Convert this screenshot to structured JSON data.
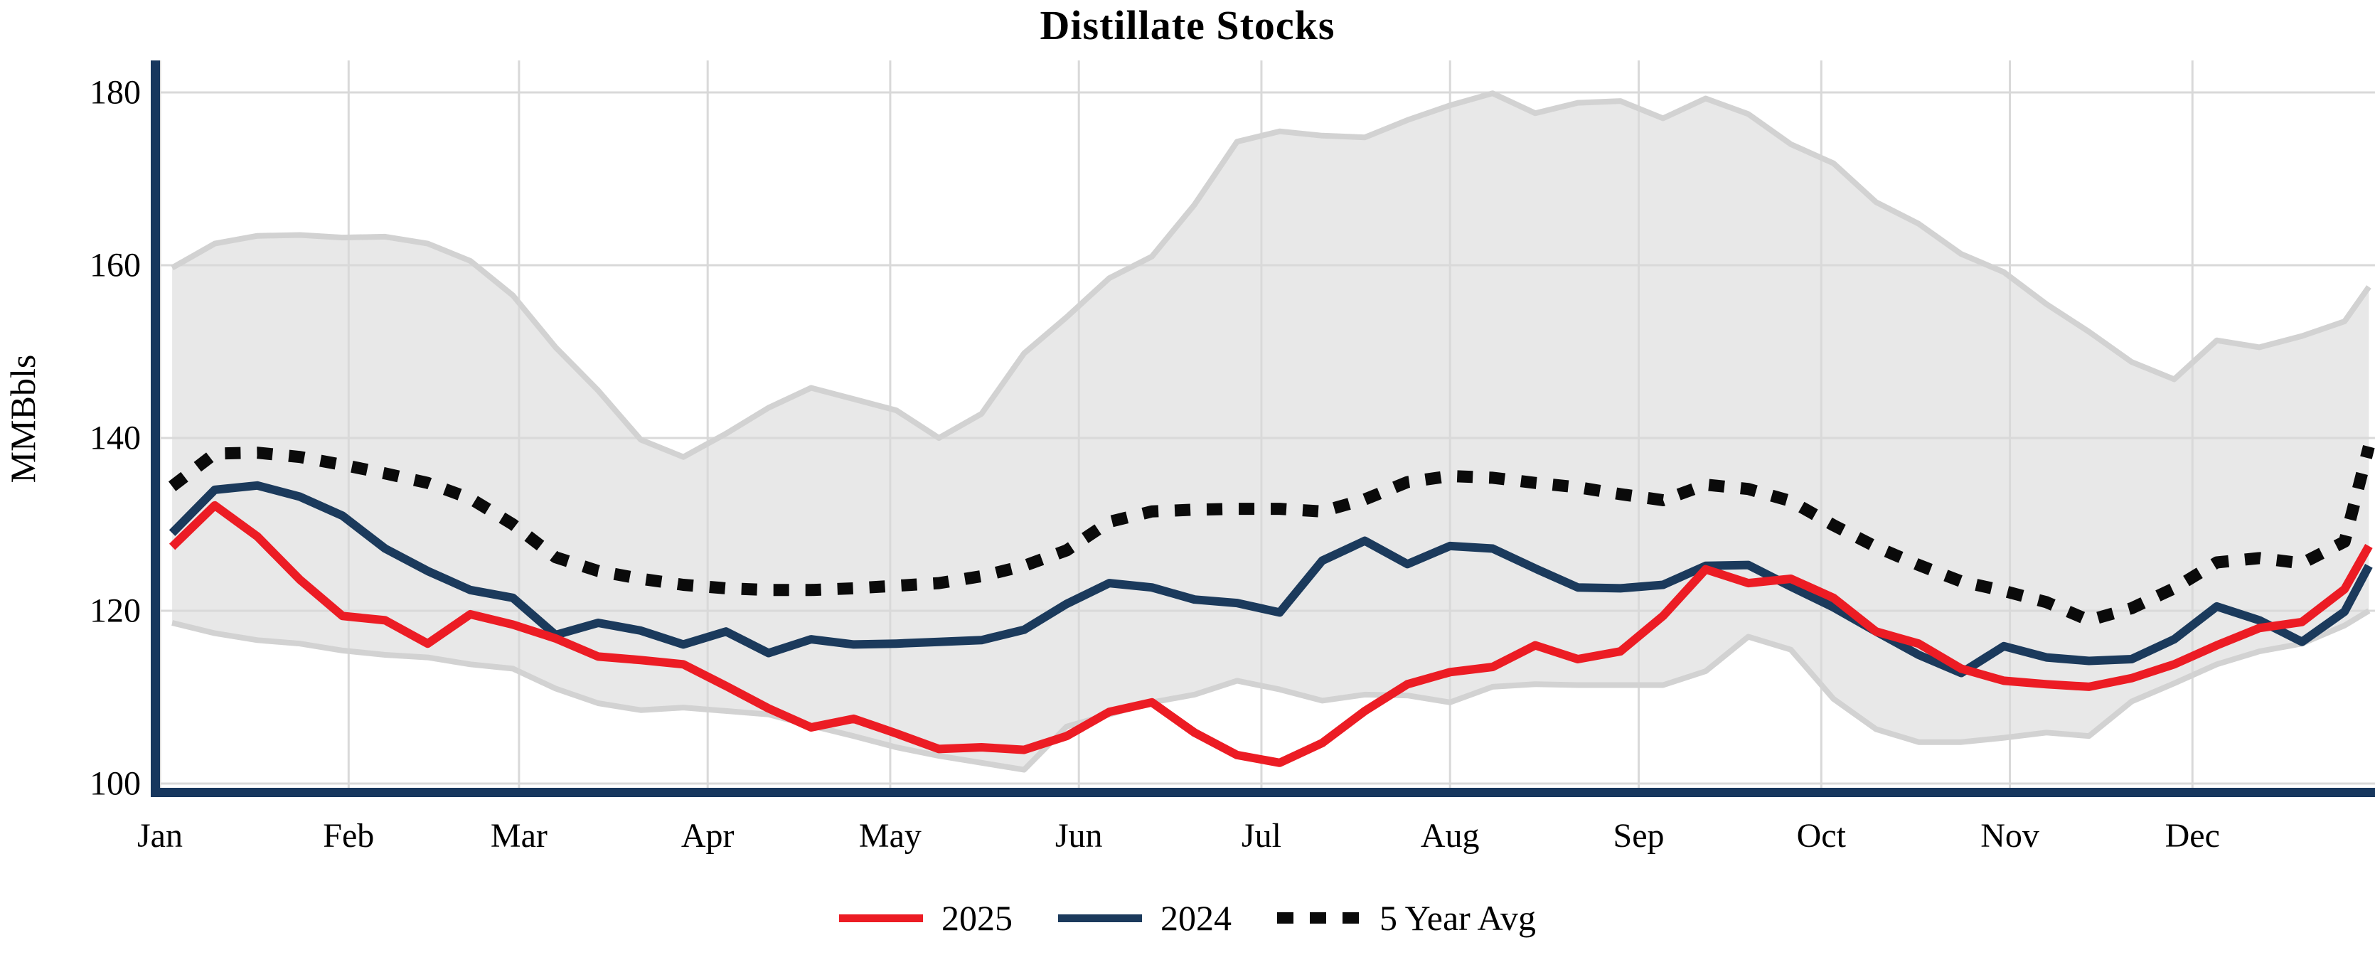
{
  "title": "Distillate Stocks",
  "y_axis": {
    "label": "MMBbls",
    "ticks": [
      100,
      120,
      140,
      160,
      180
    ]
  },
  "x_axis": {
    "months": [
      "Jan",
      "Feb",
      "Mar",
      "Apr",
      "May",
      "Jun",
      "Jul",
      "Aug",
      "Sep",
      "Oct",
      "Nov",
      "Dec"
    ]
  },
  "legend": {
    "items": [
      {
        "label": "2025",
        "swatch": "solid-red"
      },
      {
        "label": "2024",
        "swatch": "solid-navy"
      },
      {
        "label": "5 Year Avg",
        "swatch": "dotted-black"
      }
    ]
  },
  "colors": {
    "red": "#ec1c24",
    "navy": "#1b3a5c",
    "dotted": "#0a0a0a",
    "band_fill": "#e8e8e8",
    "band_edge": "#d2d2d2",
    "grid": "#d9d9d9",
    "axis": "#17375e"
  },
  "chart_data": {
    "type": "line",
    "title": "Distillate Stocks",
    "ylabel": "MMBbls",
    "ylim": [
      99,
      184
    ],
    "x_unit": "weekly points, Jan through Dec",
    "grid": true,
    "legend_position": "bottom-center",
    "week_days_of_year": [
      2,
      9,
      16,
      23,
      30,
      37,
      44,
      51,
      58,
      65,
      72,
      79,
      86,
      93,
      100,
      107,
      114,
      121,
      128,
      135,
      142,
      149,
      156,
      163,
      170,
      177,
      184,
      191,
      198,
      205,
      212,
      219,
      226,
      233,
      240,
      247,
      254,
      261,
      268,
      275,
      282,
      289,
      296,
      303,
      310,
      317,
      324,
      331,
      338,
      345,
      352,
      359,
      363
    ],
    "month_start_days": [
      0,
      31,
      59,
      90,
      120,
      151,
      181,
      212,
      243,
      273,
      304,
      334
    ],
    "series": [
      {
        "name": "2025",
        "style": "solid",
        "color_key": "red",
        "values": [
          127.4,
          132.2,
          128.6,
          123.6,
          119.4,
          118.9,
          116.2,
          119.6,
          118.4,
          116.8,
          114.7,
          114.3,
          113.8,
          111.3,
          108.7,
          106.5,
          107.5,
          105.8,
          104.0,
          104.2,
          103.9,
          105.5,
          108.3,
          109.4,
          105.9,
          103.3,
          102.4,
          104.7,
          108.4,
          111.5,
          112.9,
          113.5,
          116.0,
          114.4,
          115.3,
          119.4,
          124.8,
          123.2,
          123.7,
          121.5,
          117.6,
          116.2,
          113.3,
          111.9,
          111.5,
          111.2,
          112.2,
          113.8,
          116.0,
          118.0,
          118.7,
          122.5,
          127.5
        ]
      },
      {
        "name": "2024",
        "style": "solid",
        "color_key": "navy",
        "values": [
          129.0,
          134.0,
          134.5,
          133.2,
          131.0,
          127.2,
          124.6,
          122.4,
          121.5,
          117.2,
          118.6,
          117.7,
          116.1,
          117.6,
          115.1,
          116.7,
          116.1,
          116.2,
          116.4,
          116.6,
          117.8,
          120.8,
          123.2,
          122.7,
          121.3,
          120.9,
          119.8,
          125.8,
          128.1,
          125.4,
          127.5,
          127.2,
          124.9,
          122.7,
          122.6,
          123.0,
          125.2,
          125.3,
          122.8,
          120.4,
          117.6,
          114.9,
          112.8,
          115.9,
          114.6,
          114.2,
          114.4,
          116.7,
          120.5,
          118.9,
          116.4,
          119.9,
          125.2
        ]
      },
      {
        "name": "5 Year Avg",
        "style": "dotted",
        "color_key": "dotted",
        "values": [
          134.4,
          138.2,
          138.3,
          137.8,
          136.9,
          135.9,
          134.8,
          133.0,
          130.0,
          126.2,
          124.6,
          123.7,
          123.0,
          122.6,
          122.4,
          122.4,
          122.6,
          122.9,
          123.2,
          124.0,
          125.2,
          127.0,
          130.3,
          131.5,
          131.7,
          131.8,
          131.8,
          131.5,
          132.9,
          134.9,
          135.6,
          135.4,
          134.8,
          134.3,
          133.5,
          132.8,
          134.6,
          134.1,
          132.7,
          129.9,
          127.4,
          125.3,
          123.4,
          122.3,
          121.0,
          118.9,
          120.3,
          122.6,
          125.6,
          126.1,
          125.5,
          128.0,
          139.0
        ]
      }
    ],
    "band": {
      "name": "5 Year Range",
      "top": [
        159.7,
        162.5,
        163.4,
        163.5,
        163.2,
        163.3,
        162.5,
        160.5,
        156.5,
        150.5,
        145.5,
        139.8,
        137.8,
        140.5,
        143.5,
        145.8,
        144.5,
        143.2,
        140.0,
        142.8,
        149.8,
        154.0,
        158.5,
        161.0,
        167.0,
        174.3,
        175.5,
        175.0,
        174.8,
        176.8,
        178.5,
        179.9,
        177.6,
        178.8,
        179.0,
        177.0,
        179.3,
        177.5,
        174.0,
        171.8,
        167.3,
        164.8,
        161.3,
        159.2,
        155.5,
        152.3,
        148.8,
        146.8,
        151.3,
        150.5,
        151.8,
        153.5,
        157.5
      ],
      "bottom": [
        118.6,
        117.4,
        116.6,
        116.2,
        115.4,
        114.9,
        114.6,
        113.8,
        113.3,
        111.0,
        109.3,
        108.5,
        108.8,
        108.4,
        108.0,
        106.7,
        105.5,
        104.2,
        103.2,
        102.4,
        101.6,
        106.6,
        108.0,
        109.4,
        110.3,
        111.9,
        110.9,
        109.6,
        110.3,
        110.2,
        109.4,
        111.2,
        111.5,
        111.4,
        111.4,
        111.4,
        113.0,
        117.0,
        115.5,
        109.8,
        106.3,
        104.8,
        104.8,
        105.3,
        105.9,
        105.5,
        109.5,
        111.6,
        113.8,
        115.3,
        116.2,
        118.3,
        120.0
      ]
    }
  }
}
